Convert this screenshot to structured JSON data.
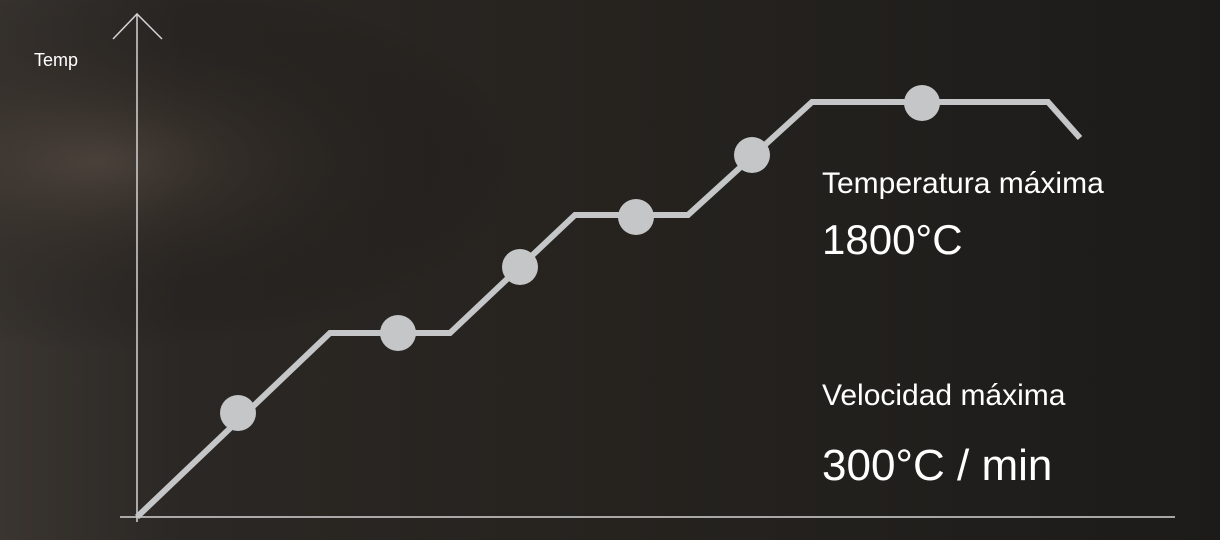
{
  "axis_label": "Temp",
  "specs": [
    {
      "label": "Temperatura máxima",
      "value": "1800°C"
    },
    {
      "label": "Velocidad máxima",
      "value": "300°C / min"
    }
  ]
}
